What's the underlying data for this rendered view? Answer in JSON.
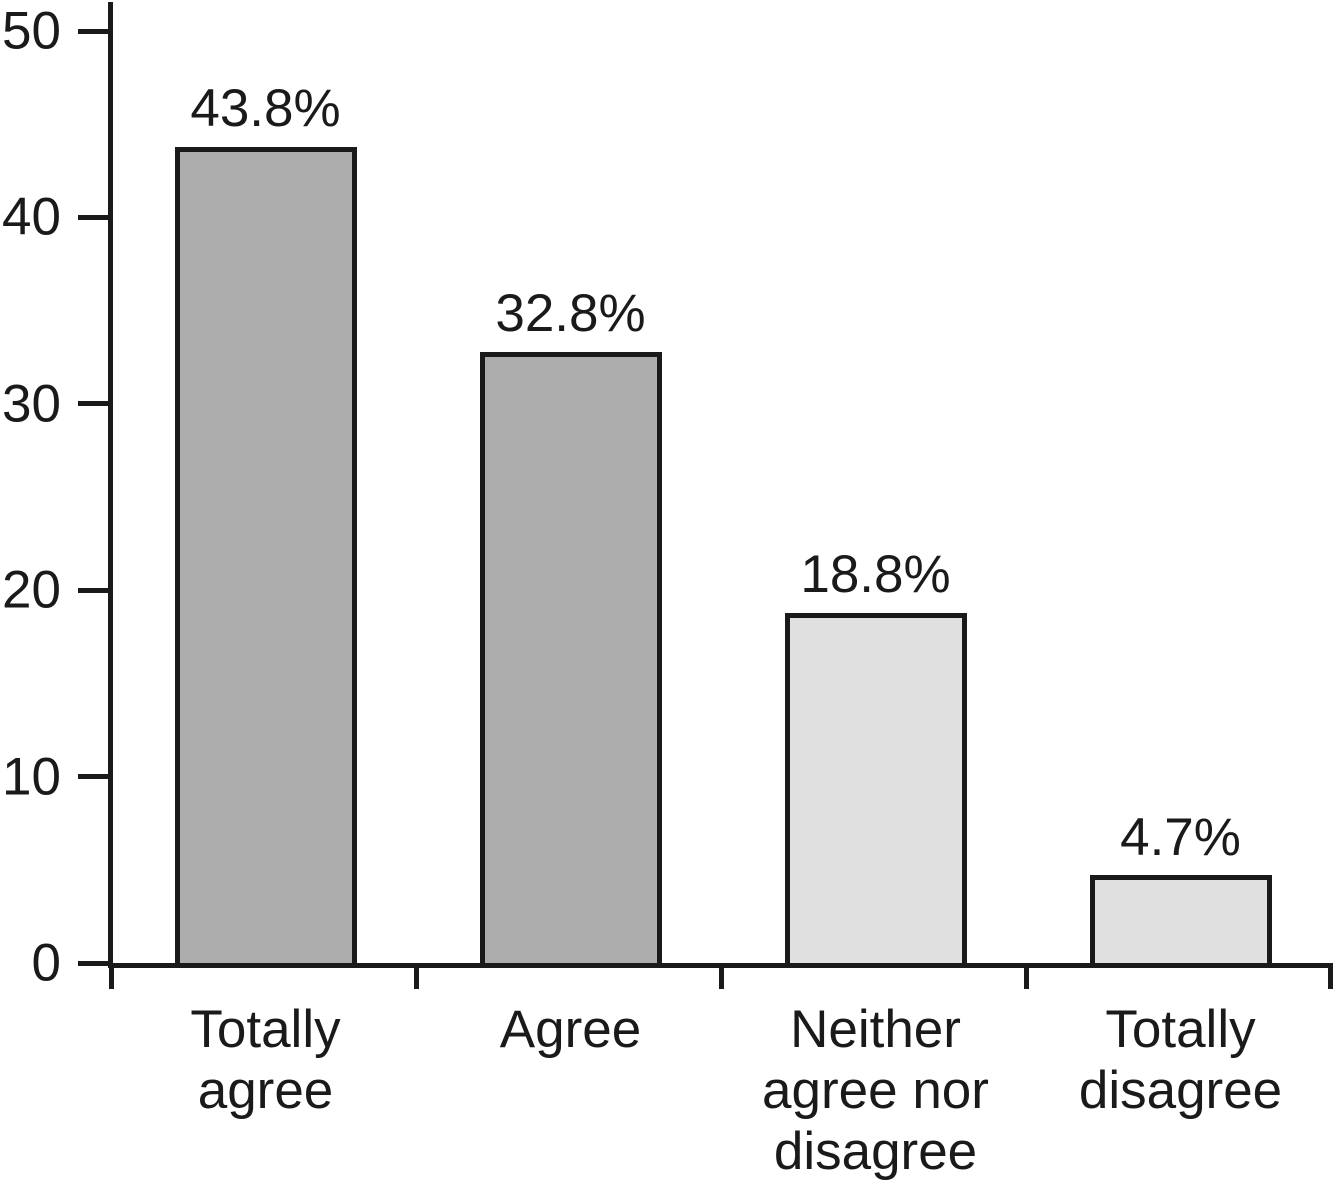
{
  "chart_data": {
    "type": "bar",
    "categories": [
      "Totally\nagree",
      "Agree",
      "Neither\nagree nor\ndisagree",
      "Totally\ndisagree"
    ],
    "values": [
      43.8,
      32.8,
      18.8,
      4.7
    ],
    "value_labels": [
      "43.8%",
      "32.8%",
      "18.8%",
      "4.7%"
    ],
    "ylim": [
      0,
      50
    ],
    "yticks": [
      0,
      10,
      20,
      30,
      40,
      50
    ],
    "ytick_labels": [
      "0",
      "10",
      "20",
      "30",
      "40",
      "50"
    ],
    "bar_colors": [
      "#adadad",
      "#adadad",
      "#e0e0e0",
      "#e0e0e0"
    ],
    "bar_border_color": "#1a1a1a",
    "axis_color": "#1a1a1a",
    "grid": false,
    "legend_position": "none"
  }
}
